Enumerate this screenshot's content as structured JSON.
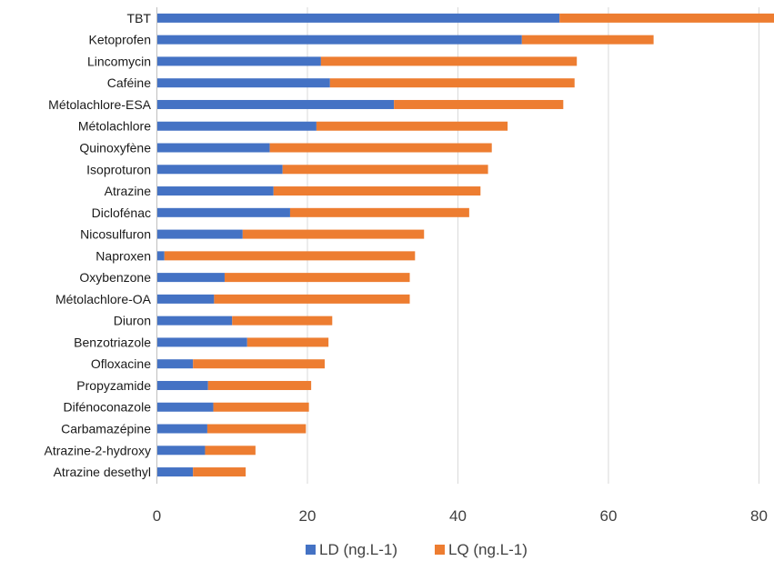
{
  "chart_data": {
    "type": "bar",
    "orientation": "horizontal",
    "stacked": true,
    "categories": [
      "TBT",
      "Ketoprofen",
      "Lincomycin",
      "Caféine",
      "Métolachlore-ESA",
      "Métolachlore",
      "Quinoxyfène",
      "Isoproturon",
      "Atrazine",
      "Diclofénac",
      "Nicosulfuron",
      "Naproxen",
      "Oxybenzone",
      "Métolachlore-OA",
      "Diuron",
      "Benzotriazole",
      "Ofloxacine",
      "Propyzamide",
      "Difénoconazole",
      "Carbamazépine",
      "Atrazine-2-hydroxy",
      "Atrazine desethyl"
    ],
    "series": [
      {
        "name": "LD (ng.L-1)",
        "color": "#4472C4",
        "values": [
          53.5,
          48.5,
          21.8,
          23.0,
          31.5,
          21.2,
          15.0,
          16.7,
          15.5,
          17.7,
          11.4,
          1.0,
          9.0,
          7.6,
          10.0,
          12.0,
          4.8,
          6.8,
          7.5,
          6.7,
          6.4,
          4.8
        ]
      },
      {
        "name": "LQ (ng.L-1)",
        "color": "#ED7D31",
        "values": [
          29.0,
          17.5,
          34.0,
          32.5,
          22.5,
          25.4,
          29.5,
          27.3,
          27.5,
          23.8,
          24.1,
          33.3,
          24.6,
          26.0,
          13.3,
          10.8,
          17.5,
          13.7,
          12.7,
          13.1,
          6.7,
          7.0
        ]
      }
    ],
    "xlim": [
      0,
      82
    ],
    "xticks": [
      0,
      20,
      40,
      60,
      80
    ],
    "grid": "vertical",
    "legend": "bottom"
  }
}
